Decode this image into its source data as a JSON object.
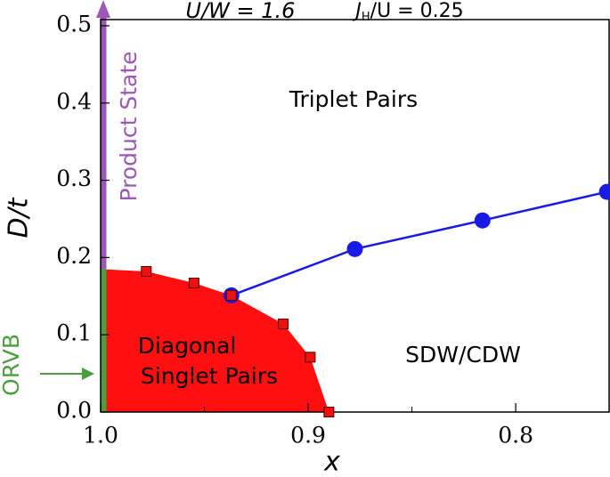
{
  "chart_data": {
    "type": "phase-diagram",
    "title": "U/W = 1.6",
    "subtitle": [
      "J",
      "H",
      "/U = 0.25"
    ],
    "xlabel": "x",
    "ylabel": "D/t",
    "xlim": [
      1.0,
      0.755
    ],
    "ylim": [
      0,
      0.508
    ],
    "xticks": [
      {
        "value": 1.0,
        "label": "1.0"
      },
      {
        "value": 0.9,
        "label": "0.9"
      },
      {
        "value": 0.8,
        "label": "0.8"
      }
    ],
    "xminorticks": [
      0.95,
      0.85
    ],
    "yticks": [
      {
        "value": 0,
        "label": "0.0"
      },
      0.1,
      0.2,
      0.3,
      0.4,
      0.5
    ],
    "region": {
      "color": "#ff0f0f",
      "x": [
        1.0,
        1.0,
        0.978,
        0.955,
        0.937,
        0.912,
        0.899,
        0.89
      ],
      "y": [
        0,
        0.185,
        0.182,
        0.167,
        0.151,
        0.114,
        0.071,
        0
      ]
    },
    "series": [
      {
        "color": "#1a1ae6",
        "marker": "circle",
        "x": [
          0.937,
          0.8775,
          0.816,
          0.756
        ],
        "values": [
          0.151,
          0.211,
          0.248,
          0.285
        ]
      },
      {
        "color": "#ee1111",
        "marker": "square",
        "x": [
          0.978,
          0.955,
          0.937,
          0.912,
          0.899,
          0.89
        ],
        "values": [
          0.182,
          0.167,
          0.151,
          0.114,
          0.071,
          0
        ]
      }
    ],
    "annotations": {
      "triplet": "Triplet Pairs",
      "singlet": [
        "Diagonal",
        "Singlet Pairs"
      ],
      "sdw": "SDW/CDW",
      "product": "Product State",
      "orvb": "ORVB"
    }
  }
}
